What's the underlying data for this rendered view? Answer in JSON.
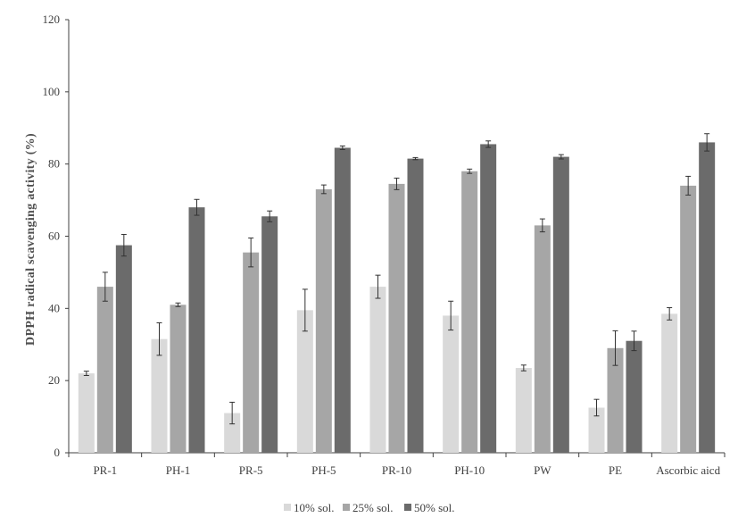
{
  "chart_data": {
    "type": "bar",
    "title": "",
    "xlabel": "",
    "ylabel": "DPPH radical scavenging activity (%)",
    "ylim": [
      0,
      120
    ],
    "yticks": [
      0,
      20,
      40,
      60,
      80,
      100,
      120
    ],
    "grid": false,
    "legend_position": "bottom",
    "categories": [
      "PR-1",
      "PH-1",
      "PR-5",
      "PH-5",
      "PR-10",
      "PH-10",
      "PW",
      "PE",
      "Ascorbic aicd"
    ],
    "series": [
      {
        "name": "10% sol.",
        "color": "#d9d9d9",
        "values": [
          22,
          31.5,
          11,
          39.5,
          46,
          38,
          23.5,
          12.5,
          38.5
        ],
        "errors": [
          0.6,
          4.5,
          3,
          5.8,
          3.2,
          4,
          0.8,
          2.3,
          1.7
        ]
      },
      {
        "name": "25% sol.",
        "color": "#a6a6a6",
        "values": [
          46,
          41,
          55.5,
          73,
          74.5,
          78,
          63,
          29,
          74
        ],
        "errors": [
          4,
          0.5,
          4,
          1.2,
          1.6,
          0.6,
          1.8,
          4.8,
          2.6
        ]
      },
      {
        "name": "50% sol.",
        "color": "#6b6b6b",
        "values": [
          57.5,
          68,
          65.5,
          84.5,
          81.5,
          85.5,
          82,
          31,
          86
        ],
        "errors": [
          3,
          2.2,
          1.5,
          0.5,
          0.3,
          0.9,
          0.6,
          2.7,
          2.4
        ]
      }
    ]
  }
}
